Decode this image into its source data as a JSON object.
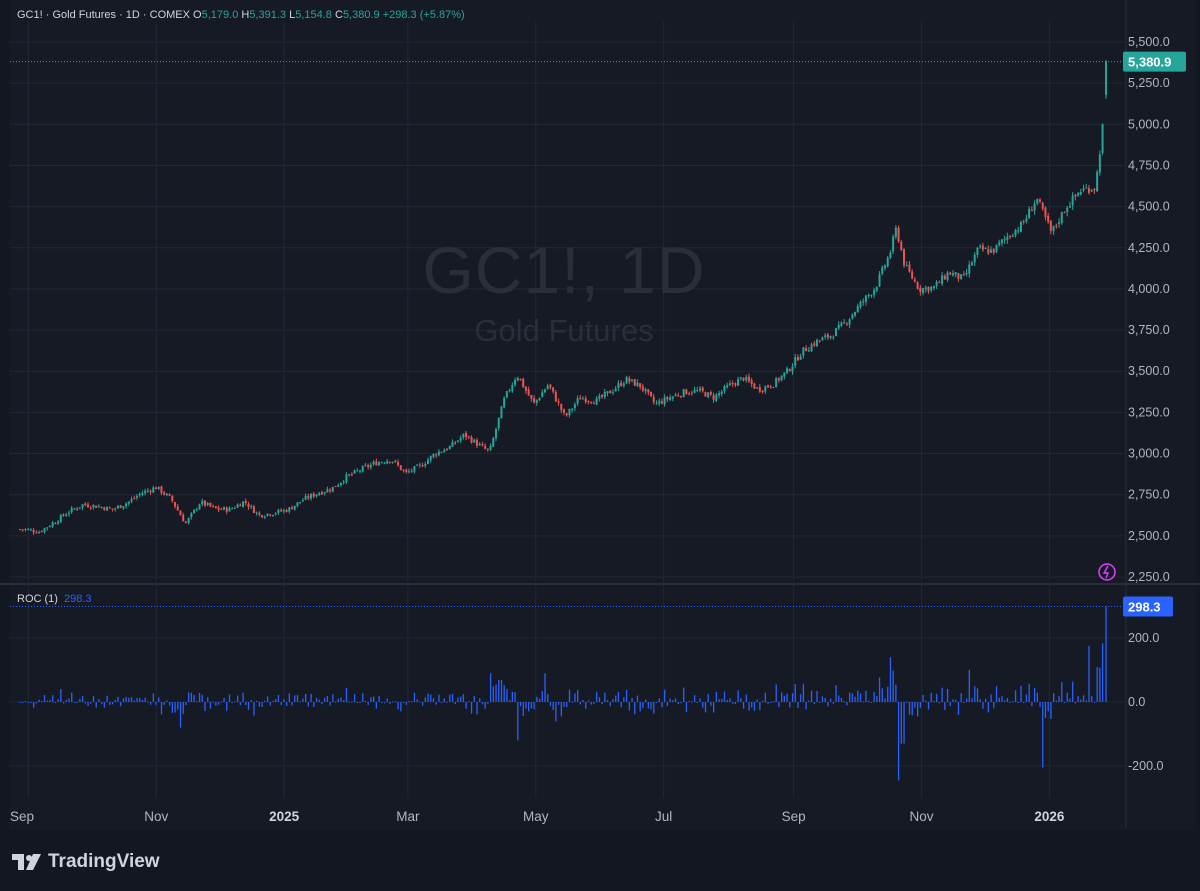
{
  "legend": {
    "symbol": "GC1! · Gold Futures · 1D · COMEX",
    "o_label": "O",
    "o": "5,179.0",
    "h_label": "H",
    "h": "5,391.3",
    "l_label": "L",
    "l": "5,154.8",
    "c_label": "C",
    "c": "5,380.9",
    "change": "+298.3 (+5.87%)"
  },
  "watermark": {
    "title": "GC1!, 1D",
    "subtitle": "Gold Futures"
  },
  "indicator": {
    "name": "ROC (1)",
    "value": "298.3"
  },
  "brand": "TradingView",
  "colors": {
    "up": "#26a69a",
    "down": "#ef5350",
    "roc": "#2962ff",
    "background": "#161a25",
    "grid": "#232735"
  },
  "chart_data": [
    {
      "type": "candlestick",
      "title": "GC1!, 1D",
      "subtitle": "Gold Futures",
      "ylim": [
        2250,
        5500
      ],
      "y_ticks": [
        2250,
        2500,
        2750,
        3000,
        3250,
        3500,
        3750,
        4000,
        4250,
        4500,
        4750,
        5000,
        5250,
        5500
      ],
      "y_tick_labels": [
        "2,250.0",
        "2,500.0",
        "2,750.0",
        "3,000.0",
        "3,250.0",
        "3,500.0",
        "3,750.0",
        "4,000.0",
        "4,250.0",
        "4,500.0",
        "4,750.0",
        "5,000.0",
        "5,250.0",
        "5,500.0"
      ],
      "x_ticks": [
        "Sep",
        "Nov",
        "2025",
        "Mar",
        "May",
        "Jul",
        "Sep",
        "Nov",
        "2026"
      ],
      "last_price_label": "5,380.9",
      "last_price": 5380.9,
      "close_path": [
        [
          "2024-08-30",
          2540
        ],
        [
          "2024-09-06",
          2525
        ],
        [
          "2024-09-13",
          2580
        ],
        [
          "2024-09-20",
          2645
        ],
        [
          "2024-09-27",
          2690
        ],
        [
          "2024-10-04",
          2680
        ],
        [
          "2024-10-11",
          2660
        ],
        [
          "2024-10-18",
          2700
        ],
        [
          "2024-10-25",
          2760
        ],
        [
          "2024-11-01",
          2795
        ],
        [
          "2024-11-08",
          2725
        ],
        [
          "2024-11-15",
          2575
        ],
        [
          "2024-11-22",
          2705
        ],
        [
          "2024-11-29",
          2665
        ],
        [
          "2024-12-06",
          2660
        ],
        [
          "2024-12-13",
          2710
        ],
        [
          "2024-12-20",
          2625
        ],
        [
          "2024-12-27",
          2640
        ],
        [
          "2025-01-03",
          2660
        ],
        [
          "2025-01-10",
          2720
        ],
        [
          "2025-01-17",
          2760
        ],
        [
          "2025-01-24",
          2790
        ],
        [
          "2025-01-31",
          2860
        ],
        [
          "2025-02-07",
          2905
        ],
        [
          "2025-02-14",
          2945
        ],
        [
          "2025-02-21",
          2965
        ],
        [
          "2025-02-28",
          2880
        ],
        [
          "2025-03-07",
          2925
        ],
        [
          "2025-03-14",
          3000
        ],
        [
          "2025-03-21",
          3040
        ],
        [
          "2025-03-28",
          3115
        ],
        [
          "2025-04-04",
          3050
        ],
        [
          "2025-04-09",
          3010
        ],
        [
          "2025-04-16",
          3330
        ],
        [
          "2025-04-22",
          3480
        ],
        [
          "2025-04-30",
          3300
        ],
        [
          "2025-05-07",
          3420
        ],
        [
          "2025-05-15",
          3220
        ],
        [
          "2025-05-22",
          3340
        ],
        [
          "2025-05-30",
          3320
        ],
        [
          "2025-06-06",
          3380
        ],
        [
          "2025-06-13",
          3450
        ],
        [
          "2025-06-20",
          3410
        ],
        [
          "2025-06-27",
          3300
        ],
        [
          "2025-07-04",
          3340
        ],
        [
          "2025-07-11",
          3375
        ],
        [
          "2025-07-18",
          3380
        ],
        [
          "2025-07-25",
          3340
        ],
        [
          "2025-08-01",
          3410
        ],
        [
          "2025-08-08",
          3460
        ],
        [
          "2025-08-15",
          3390
        ],
        [
          "2025-08-22",
          3420
        ],
        [
          "2025-08-29",
          3500
        ],
        [
          "2025-09-05",
          3620
        ],
        [
          "2025-09-12",
          3680
        ],
        [
          "2025-09-19",
          3720
        ],
        [
          "2025-09-26",
          3800
        ],
        [
          "2025-10-03",
          3910
        ],
        [
          "2025-10-10",
          4010
        ],
        [
          "2025-10-17",
          4220
        ],
        [
          "2025-10-20",
          4370
        ],
        [
          "2025-10-24",
          4140
        ],
        [
          "2025-10-31",
          4000
        ],
        [
          "2025-11-07",
          4010
        ],
        [
          "2025-11-14",
          4100
        ],
        [
          "2025-11-21",
          4060
        ],
        [
          "2025-11-28",
          4240
        ],
        [
          "2025-12-05",
          4230
        ],
        [
          "2025-12-12",
          4320
        ],
        [
          "2025-12-19",
          4390
        ],
        [
          "2025-12-26",
          4550
        ],
        [
          "2026-01-02",
          4340
        ],
        [
          "2026-01-09",
          4500
        ],
        [
          "2026-01-16",
          4600
        ],
        [
          "2026-01-23",
          4620
        ],
        [
          "2026-01-27",
          5050
        ],
        [
          "2026-01-28",
          5380.9
        ]
      ]
    },
    {
      "type": "bar",
      "title": "ROC (1)",
      "ylim": [
        -250,
        320
      ],
      "y_ticks": [
        -200,
        0,
        200
      ],
      "y_tick_labels": [
        "-200.0",
        "0.0",
        "200.0"
      ],
      "last_value_label": "298.3",
      "last_value": 298.3,
      "notable_values": [
        [
          "2024-11-12",
          -80
        ],
        [
          "2025-04-09",
          90
        ],
        [
          "2025-04-23",
          -120
        ],
        [
          "2025-05-06",
          90
        ],
        [
          "2025-10-17",
          140
        ],
        [
          "2025-10-21",
          -245
        ],
        [
          "2025-10-23",
          -130
        ],
        [
          "2025-11-24",
          100
        ],
        [
          "2025-12-29",
          -205
        ],
        [
          "2026-01-20",
          175
        ],
        [
          "2026-01-28",
          298.3
        ]
      ]
    }
  ]
}
